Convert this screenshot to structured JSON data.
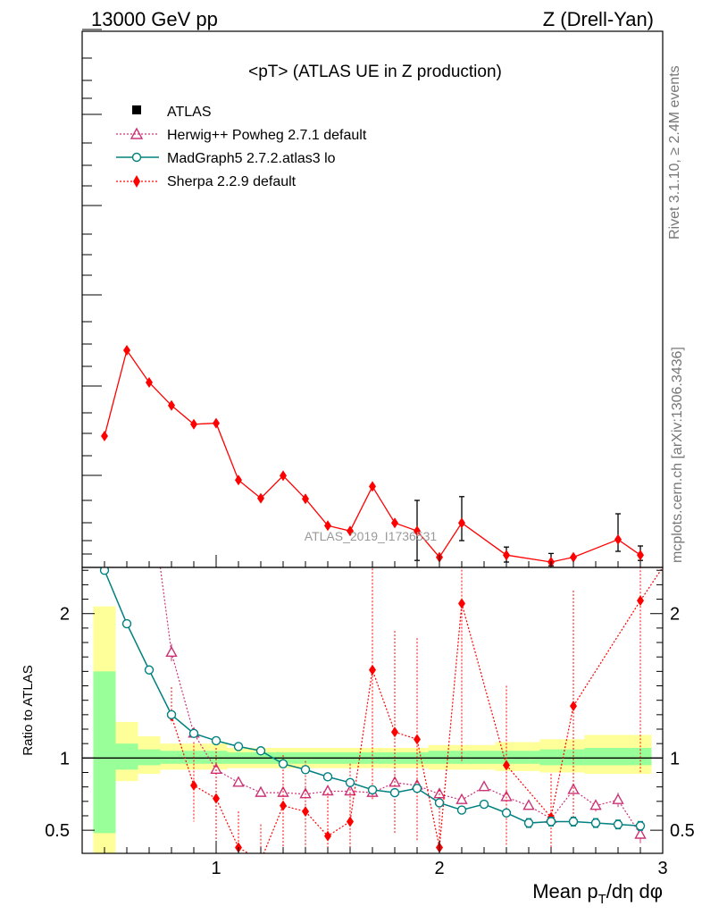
{
  "header": {
    "energy": "13000 GeV pp",
    "process": "Z (Drell-Yan)"
  },
  "side": {
    "rivet": "Rivet 3.1.10, ≥ 2.4M events",
    "mcplots": "mcplots.cern.ch [arXiv:1306.3436]"
  },
  "chart_data": [
    {
      "type": "line",
      "title": "<pT> (ATLAS UE in Z production)",
      "watermark": "ATLAS_2019_I1736531",
      "xlim": [
        0.4,
        3.0
      ],
      "ylim": [
        0,
        1
      ],
      "y_tick_labels": "none",
      "legend_position": "top-left",
      "legend": [
        {
          "name": "ATLAS",
          "marker": "square",
          "color": "#000000"
        },
        {
          "name": "Herwig++ Powheg 2.7.1 default",
          "marker": "triangle",
          "color": "#cc3377"
        },
        {
          "name": "MadGraph5 2.7.2.atlas3 lo",
          "marker": "circle",
          "color": "#008080"
        },
        {
          "name": "Sherpa 2.2.9 default",
          "marker": "diamond",
          "color": "#ff0000"
        }
      ],
      "series": [
        {
          "name": "Sherpa 2.2.9 default",
          "x": [
            0.5,
            0.6,
            0.7,
            0.8,
            0.9,
            1.0,
            1.1,
            1.2,
            1.3,
            1.4,
            1.5,
            1.6,
            1.7,
            1.8,
            1.9,
            2.0,
            2.1,
            2.3,
            2.5,
            2.6,
            2.8,
            2.9
          ],
          "y": [
            0.245,
            0.405,
            0.345,
            0.302,
            0.267,
            0.269,
            0.163,
            0.129,
            0.171,
            0.128,
            0.078,
            0.068,
            0.151,
            0.083,
            0.068,
            0.019,
            0.083,
            0.023,
            0.01,
            0.019,
            0.052,
            0.023
          ]
        }
      ],
      "data_errorbars": [
        {
          "x": 1.9,
          "lo": 0.013,
          "hi": 0.125
        },
        {
          "x": 2.1,
          "lo": 0.05,
          "hi": 0.132
        },
        {
          "x": 2.3,
          "lo": 0.01,
          "hi": 0.038
        },
        {
          "x": 2.5,
          "lo": 0.003,
          "hi": 0.026
        },
        {
          "x": 2.8,
          "lo": 0.03,
          "hi": 0.1
        },
        {
          "x": 2.9,
          "lo": 0.013,
          "hi": 0.04
        }
      ]
    },
    {
      "type": "line",
      "ylabel": "Ratio to ATLAS",
      "xlabel": "Mean p_T/dη dφ",
      "xlim": [
        0.4,
        3.0
      ],
      "ylim": [
        0.34,
        2.32
      ],
      "yticks": [
        0.5,
        1,
        2
      ],
      "ytick_labels": [
        "0.5",
        "1",
        "2"
      ],
      "xticks": [
        1,
        2,
        3
      ],
      "xtick_labels": [
        "1",
        "2",
        "3"
      ],
      "reference_line": 1,
      "bands": [
        {
          "x0": 0.45,
          "x1": 0.55,
          "g_lo": 0.48,
          "g_hi": 1.6,
          "y_lo": 0.34,
          "y_hi": 2.05
        },
        {
          "x0": 0.55,
          "x1": 0.65,
          "g_lo": 0.92,
          "g_hi": 1.1,
          "y_lo": 0.84,
          "y_hi": 1.25
        },
        {
          "x0": 0.65,
          "x1": 0.75,
          "g_lo": 0.95,
          "g_hi": 1.06,
          "y_lo": 0.89,
          "y_hi": 1.15
        },
        {
          "x0": 0.75,
          "x1": 1.05,
          "g_lo": 0.96,
          "g_hi": 1.05,
          "y_lo": 0.92,
          "y_hi": 1.1
        },
        {
          "x0": 1.05,
          "x1": 1.95,
          "g_lo": 0.96,
          "g_hi": 1.04,
          "y_lo": 0.93,
          "y_hi": 1.07
        },
        {
          "x0": 1.95,
          "x1": 2.25,
          "g_lo": 0.96,
          "g_hi": 1.05,
          "y_lo": 0.92,
          "y_hi": 1.09
        },
        {
          "x0": 2.25,
          "x1": 2.45,
          "g_lo": 0.96,
          "g_hi": 1.05,
          "y_lo": 0.91,
          "y_hi": 1.11
        },
        {
          "x0": 2.45,
          "x1": 2.65,
          "g_lo": 0.95,
          "g_hi": 1.06,
          "y_lo": 0.9,
          "y_hi": 1.13
        },
        {
          "x0": 2.65,
          "x1": 2.95,
          "g_lo": 0.95,
          "g_hi": 1.07,
          "y_lo": 0.89,
          "y_hi": 1.16
        }
      ],
      "series": [
        {
          "name": "MadGraph5 2.7.2.atlas3 lo",
          "x": [
            0.5,
            0.6,
            0.7,
            0.8,
            0.9,
            1.0,
            1.1,
            1.2,
            1.3,
            1.4,
            1.5,
            1.6,
            1.7,
            1.8,
            1.9,
            2.0,
            2.1,
            2.2,
            2.3,
            2.4,
            2.5,
            2.6,
            2.7,
            2.8,
            2.9
          ],
          "y": [
            2.3,
            1.93,
            1.61,
            1.3,
            1.17,
            1.12,
            1.08,
            1.05,
            0.96,
            0.92,
            0.87,
            0.83,
            0.78,
            0.76,
            0.79,
            0.69,
            0.64,
            0.68,
            0.62,
            0.55,
            0.56,
            0.56,
            0.55,
            0.54,
            0.53
          ],
          "err": [
            0,
            0,
            0,
            0,
            0,
            0,
            0,
            0,
            0,
            0,
            0,
            0,
            0,
            0,
            0,
            0.01,
            0.02,
            0.02,
            0.02,
            0.03,
            0.03,
            0.03,
            0.03,
            0.03,
            0.03
          ]
        },
        {
          "name": "Herwig++ Powheg 2.7.1 default",
          "x": [
            0.8,
            0.9,
            1.0,
            1.1,
            1.2,
            1.3,
            1.4,
            1.5,
            1.6,
            1.7,
            1.8,
            1.9,
            2.0,
            2.1,
            2.2,
            2.3,
            2.4,
            2.5,
            2.6,
            2.7,
            2.8,
            2.9
          ],
          "y": [
            1.73,
            1.17,
            0.92,
            0.83,
            0.76,
            0.76,
            0.75,
            0.77,
            0.77,
            0.76,
            0.83,
            0.81,
            0.75,
            0.71,
            0.8,
            0.73,
            0.67,
            0.58,
            0.78,
            0.67,
            0.71,
            0.47
          ],
          "err": [
            0.06,
            0.02,
            0.03,
            0.02,
            0.02,
            0.02,
            0.02,
            0.02,
            0.02,
            0.02,
            0.02,
            0.02,
            0.03,
            0.03,
            0.03,
            0.03,
            0.03,
            0.04,
            0.04,
            0.04,
            0.05,
            0.06
          ],
          "start_from": [
            0.75,
            2.32
          ]
        },
        {
          "name": "Sherpa 2.2.9 default",
          "x": [
            0.8,
            0.9,
            1.0,
            1.1,
            1.2,
            1.3,
            1.4,
            1.5,
            1.6,
            1.7,
            1.8,
            1.9,
            2.0,
            2.1,
            2.3,
            2.5,
            2.6,
            2.9
          ],
          "y": [
            1.29,
            0.81,
            0.72,
            0.38,
            0.29,
            0.67,
            0.63,
            0.46,
            0.56,
            1.61,
            1.18,
            1.13,
            0.38,
            2.07,
            0.95,
            0.59,
            1.36,
            2.09
          ],
          "err_lo": [
            0.05,
            0.25,
            0.3,
            0.25,
            0.2,
            0.35,
            0.3,
            0.2,
            0.3,
            0.9,
            0.7,
            0.7,
            0.3,
            1.1,
            0.55,
            0.25,
            0.8,
            1.2
          ],
          "err_hi": [
            0.2,
            0.3,
            0.35,
            0.25,
            0.25,
            0.35,
            0.35,
            0.3,
            0.4,
            0.9,
            0.7,
            0.7,
            0.4,
            1.1,
            0.55,
            0.3,
            0.8,
            1.2
          ],
          "end_to": [
            3.0,
            2.32
          ]
        }
      ]
    }
  ]
}
